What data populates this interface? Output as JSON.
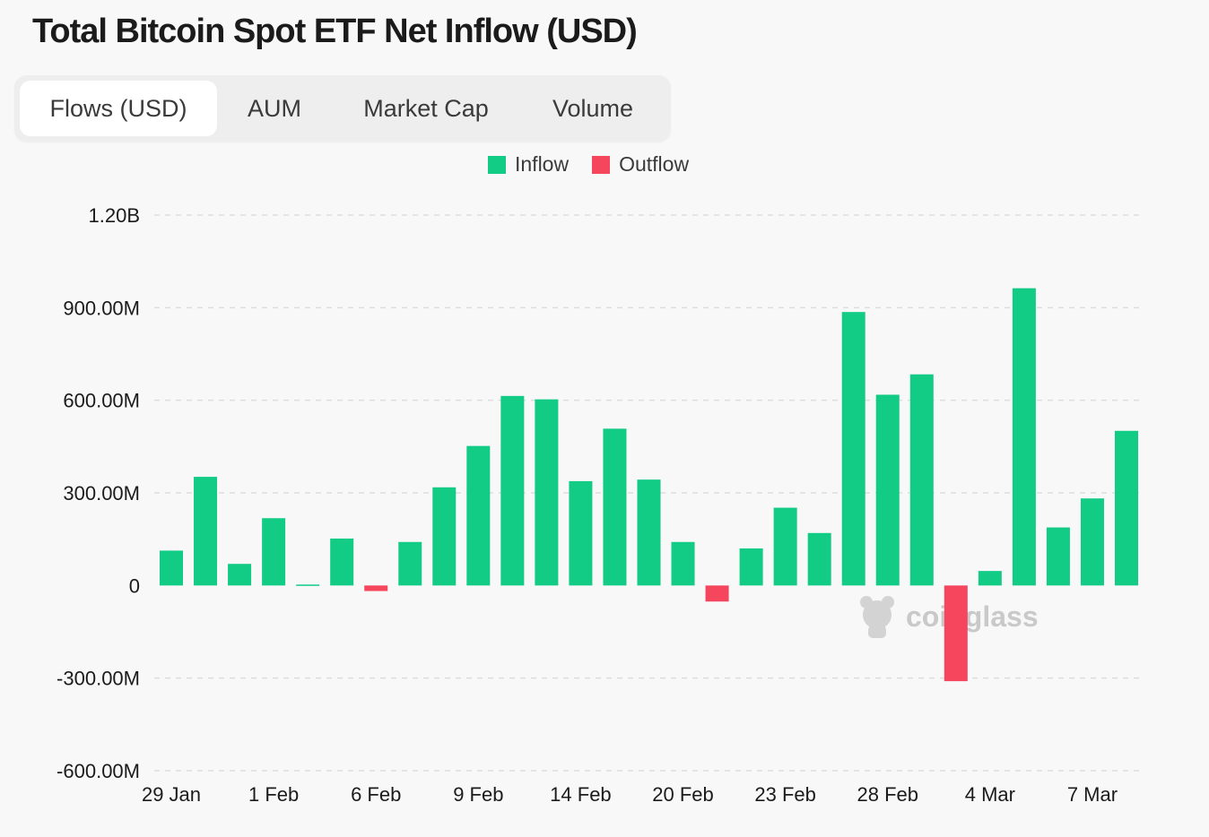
{
  "title": "Total Bitcoin Spot ETF Net Inflow (USD)",
  "tabs": [
    {
      "label": "Flows (USD)",
      "active": true
    },
    {
      "label": "AUM",
      "active": false
    },
    {
      "label": "Market Cap",
      "active": false
    },
    {
      "label": "Volume",
      "active": false
    }
  ],
  "legend": {
    "inflow_label": "Inflow",
    "outflow_label": "Outflow"
  },
  "colors": {
    "inflow": "#12cb85",
    "outflow": "#f6465d",
    "grid": "#dddddd"
  },
  "watermark": "coinglass",
  "chart_data": {
    "type": "bar",
    "title": "Total Bitcoin Spot ETF Net Inflow (USD)",
    "xlabel": "",
    "ylabel": "",
    "ylim": [
      -600000000,
      1200000000
    ],
    "yticks": [
      {
        "value": 1200000000,
        "label": "1.20B"
      },
      {
        "value": 900000000,
        "label": "900.00M"
      },
      {
        "value": 600000000,
        "label": "600.00M"
      },
      {
        "value": 300000000,
        "label": "300.00M"
      },
      {
        "value": 0,
        "label": "0"
      },
      {
        "value": -300000000,
        "label": "-300.00M"
      },
      {
        "value": -600000000,
        "label": "-600.00M"
      }
    ],
    "xticks": [
      {
        "index": 0,
        "label": "29 Jan"
      },
      {
        "index": 3,
        "label": "1 Feb"
      },
      {
        "index": 6,
        "label": "6 Feb"
      },
      {
        "index": 9,
        "label": "9 Feb"
      },
      {
        "index": 12,
        "label": "14 Feb"
      },
      {
        "index": 15,
        "label": "20 Feb"
      },
      {
        "index": 18,
        "label": "23 Feb"
      },
      {
        "index": 21,
        "label": "28 Feb"
      },
      {
        "index": 24,
        "label": "4 Mar"
      },
      {
        "index": 27,
        "label": "7 Mar"
      }
    ],
    "grid": true,
    "legend_position": "top-center",
    "series": [
      {
        "name": "Inflow/Outflow",
        "values": [
          113000000,
          352000000,
          70000000,
          218000000,
          3000000,
          152000000,
          -18000000,
          141000000,
          318000000,
          452000000,
          614000000,
          603000000,
          338000000,
          508000000,
          343000000,
          141000000,
          -52000000,
          120000000,
          252000000,
          170000000,
          886000000,
          618000000,
          684000000,
          -310000000,
          47000000,
          963000000,
          188000000,
          282000000,
          501000000
        ]
      }
    ]
  }
}
